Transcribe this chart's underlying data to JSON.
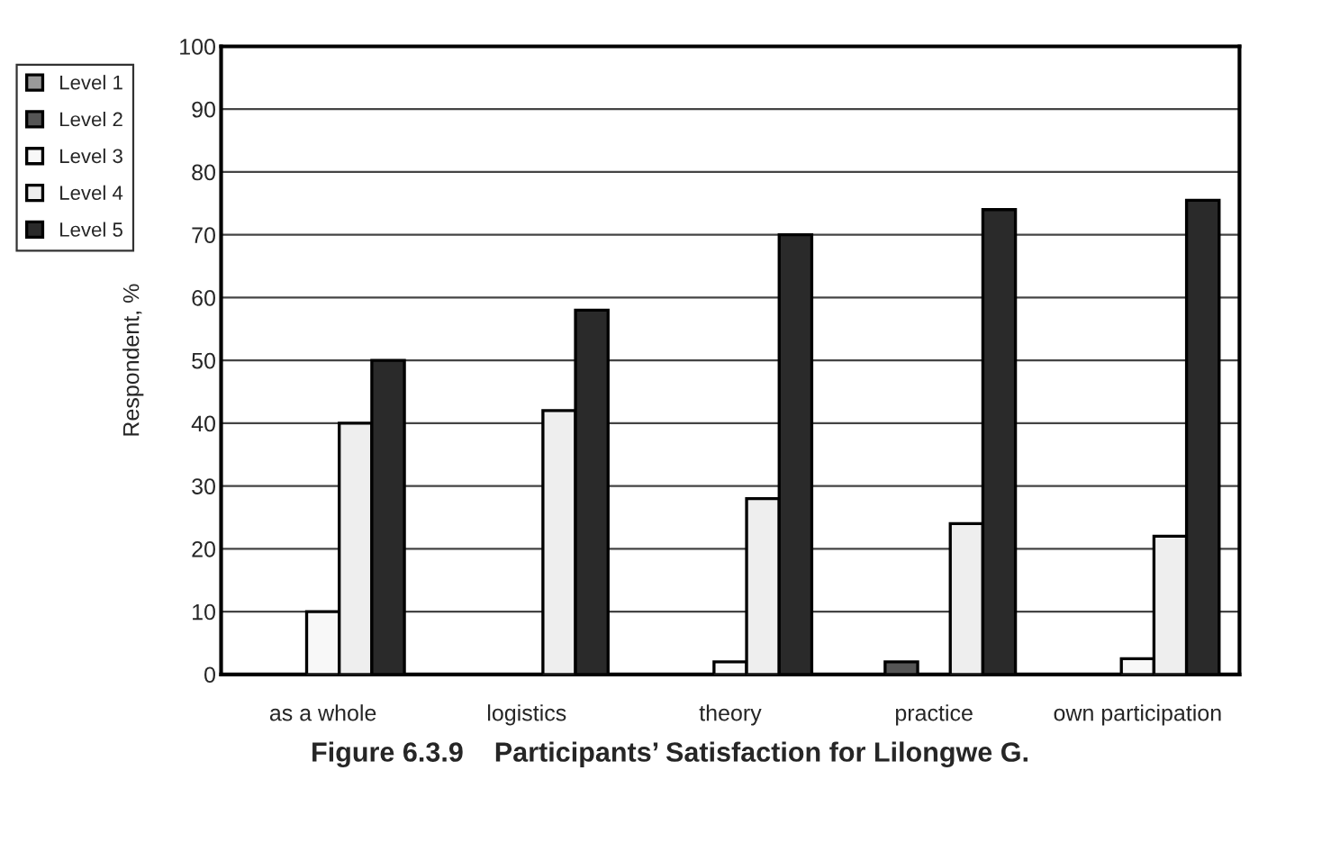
{
  "chart_data": {
    "type": "bar",
    "title": "Figure 6.3.9    Participants’ Satisfaction for Lilongwe G.",
    "ylabel": "Respondent, %",
    "categories": [
      "as a whole",
      "logistics",
      "theory",
      "practice",
      "own participation"
    ],
    "series": [
      {
        "name": "Level 1",
        "color": "#999999",
        "values": [
          null,
          null,
          null,
          null,
          null
        ]
      },
      {
        "name": "Level 2",
        "color": "#555555",
        "values": [
          null,
          null,
          null,
          2,
          null
        ]
      },
      {
        "name": "Level 3",
        "color": "#f8f8f8",
        "values": [
          10,
          null,
          2,
          null,
          2.5
        ]
      },
      {
        "name": "Level 4",
        "color": "#eeeeee",
        "values": [
          40,
          42,
          28,
          24,
          22
        ]
      },
      {
        "name": "Level 5",
        "color": "#2a2a2a",
        "values": [
          50,
          58,
          70,
          74,
          75.5
        ]
      }
    ],
    "ylim": [
      0,
      100
    ],
    "yticks": [
      0,
      10,
      20,
      30,
      40,
      50,
      60,
      70,
      80,
      90,
      100
    ],
    "grid": "y",
    "legend": "left"
  }
}
